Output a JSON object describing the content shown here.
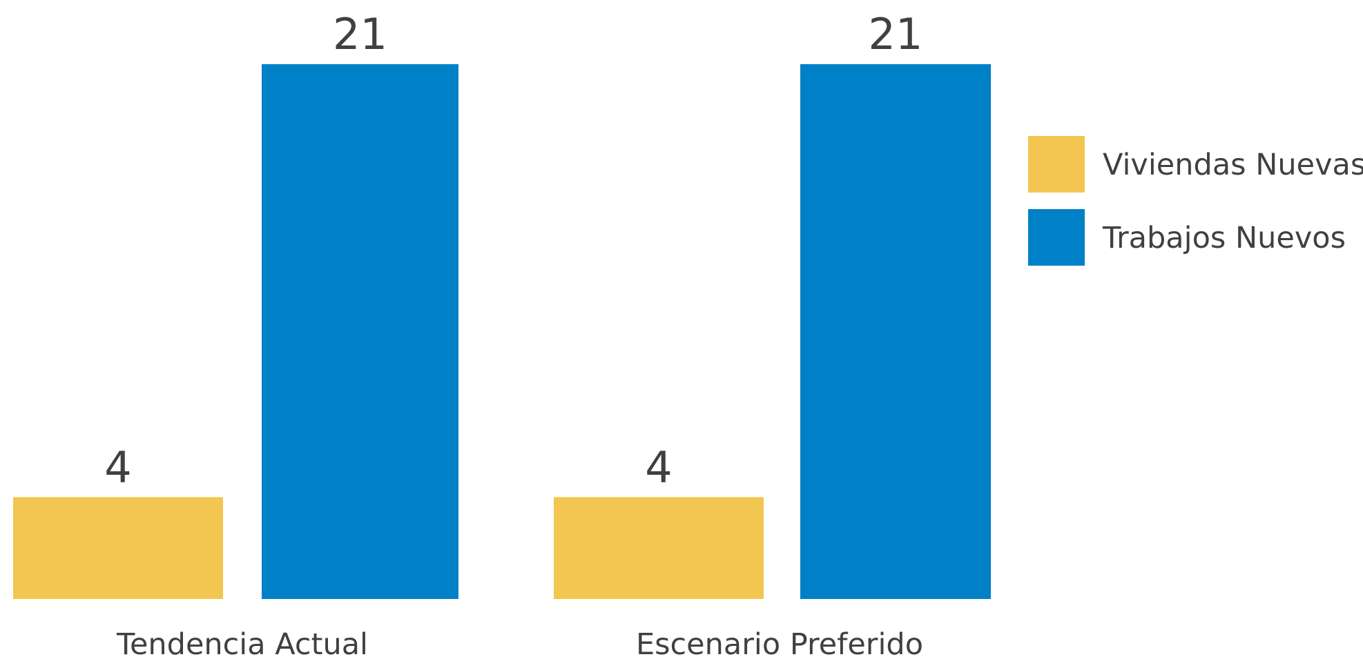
{
  "chart_data": {
    "type": "bar",
    "categories": [
      "Tendencia Actual",
      "Escenario Preferido"
    ],
    "series": [
      {
        "name": "Viviendas Nuevas",
        "values": [
          4,
          4
        ],
        "color": "#f2c650"
      },
      {
        "name": "Trabajos Nuevos",
        "values": [
          21,
          21
        ],
        "color": "#0080c6"
      }
    ],
    "ylim": [
      0,
      21
    ],
    "grid": false,
    "legend_position": "right",
    "data_labels": true
  }
}
